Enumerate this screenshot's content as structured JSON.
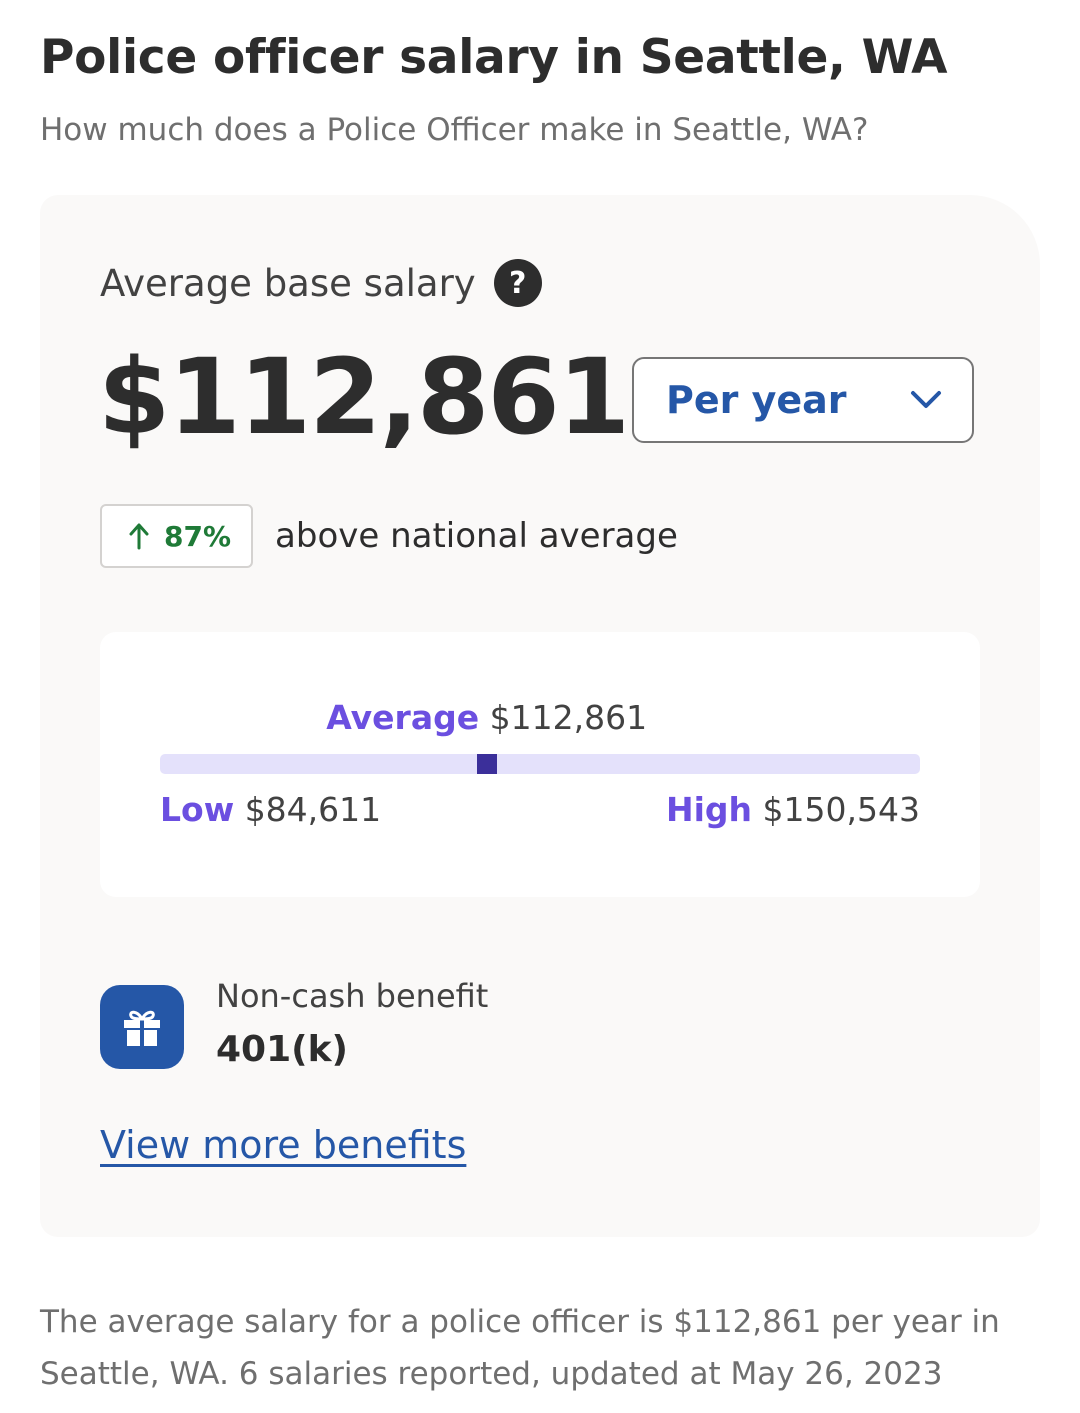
{
  "header": {
    "title": "Police officer salary in Seattle, WA",
    "subtitle": "How much does a Police Officer make in Seattle, WA?"
  },
  "salary_card": {
    "label": "Average base salary",
    "help_icon": "question-icon",
    "amount": "$112,861",
    "period": {
      "selected": "Per year",
      "icon": "chevron-down-icon"
    },
    "comparison": {
      "icon": "arrow-up-icon",
      "percent": "87%",
      "text": "above national average"
    },
    "range": {
      "average_label": "Average",
      "average_value": "$112,861",
      "low_label": "Low",
      "low_value": "$84,611",
      "high_label": "High",
      "high_value": "$150,543",
      "average_position": 0.43
    },
    "benefit": {
      "icon": "gift-icon",
      "label": "Non-cash benefit",
      "value": "401(k)"
    },
    "more_link": "View more benefits"
  },
  "summary": {
    "text": "The average salary for a police officer is $112,861 per year in Seattle, WA.  6 salaries reported, updated at May 26, 2023"
  },
  "colors": {
    "accent_blue": "#2557a7",
    "accent_purple": "#6b4fe0",
    "marker_purple": "#3b2f9a",
    "trend_green": "#1f7a37"
  }
}
